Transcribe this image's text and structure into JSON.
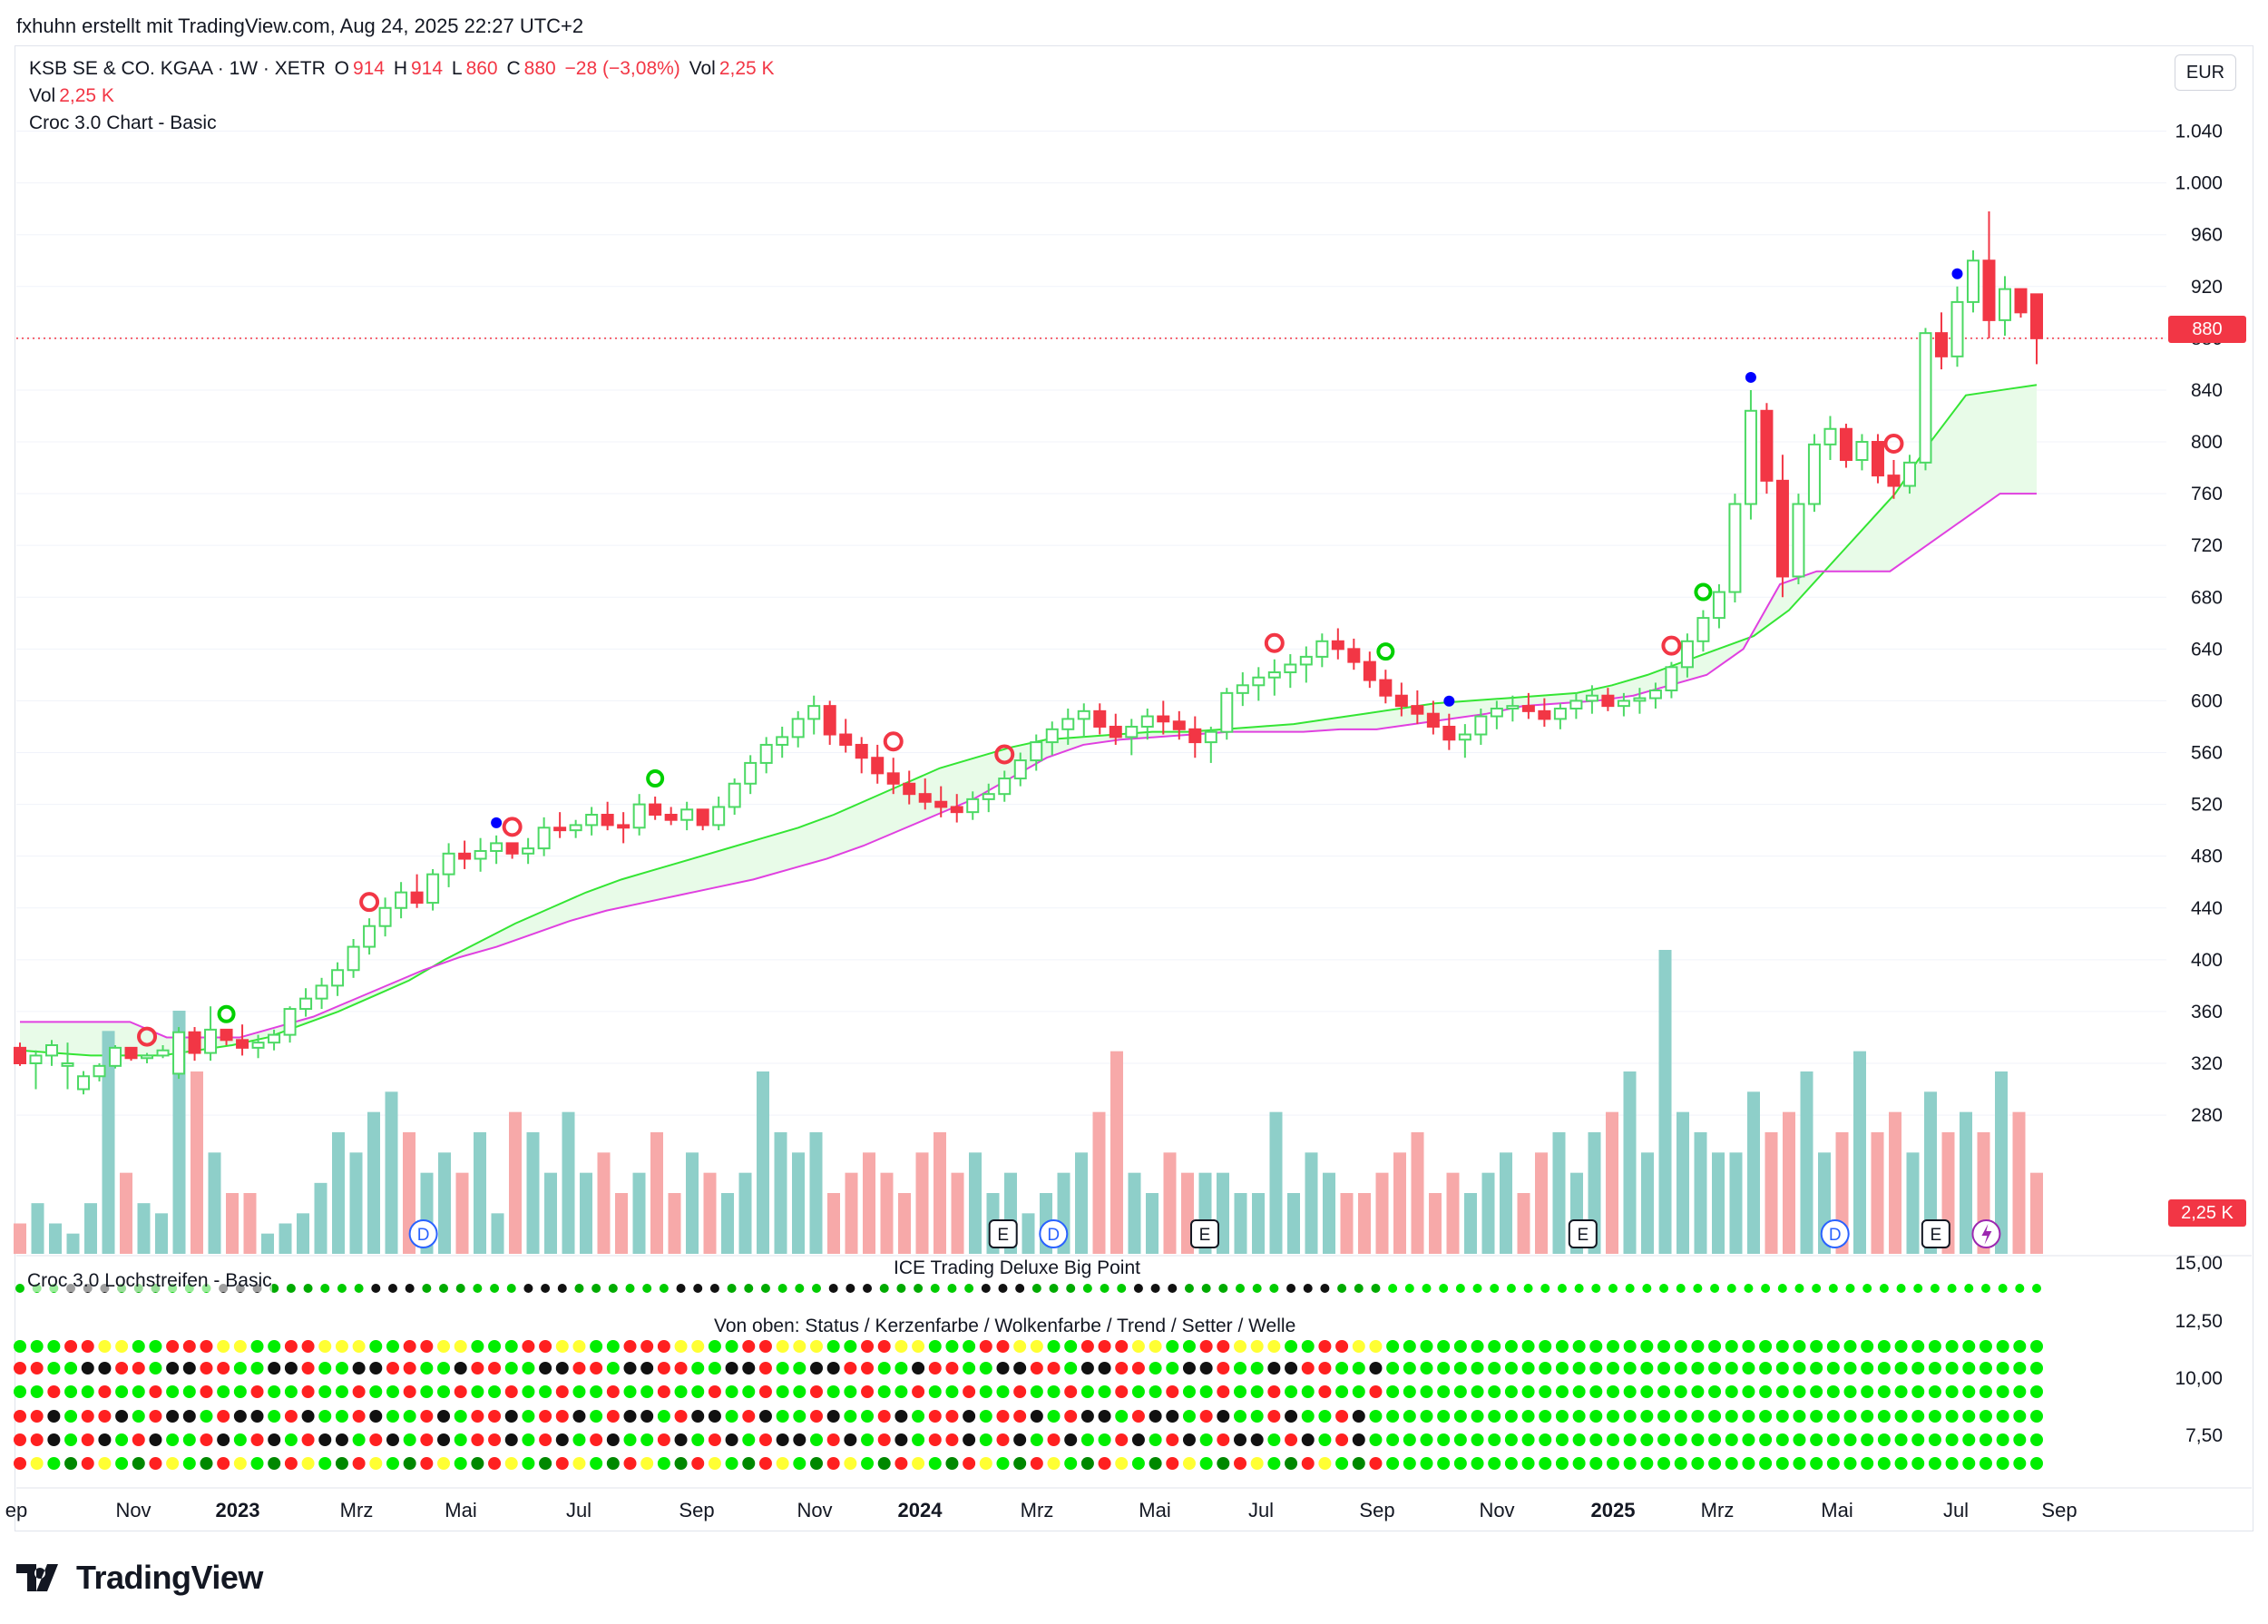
{
  "header_caption": "fxhuhn erstellt mit TradingView.com, Aug 24, 2025 22:27 UTC+2",
  "legend": {
    "symbol": "KSB SE & CO. KGAA · 1W · XETR",
    "o_label": "O",
    "o_value": "914",
    "h_label": "H",
    "h_value": "914",
    "l_label": "L",
    "l_value": "860",
    "c_label": "C",
    "c_value": "880",
    "change": "−28 (−3,08%)",
    "vol_label": "Vol",
    "vol_value": "2,25 K",
    "vol_line_label": "Vol",
    "vol_line_value": "2,25 K",
    "indicator": "Croc 3.0 Chart - Basic"
  },
  "currency": "EUR",
  "last_price_tag": "880",
  "last_volume_tag": "2,25 K",
  "colors": {
    "up": "#4cd964",
    "down": "#f23645",
    "cloud_top": "#34e534",
    "cloud_bottom": "#e040e0",
    "cloud_fill": "#e8fbe8",
    "vol_up": "#8ecfc9",
    "vol_down": "#f7a9a9"
  },
  "price_axis": [
    "1.040",
    "1.000",
    "960",
    "920",
    "880",
    "840",
    "800",
    "760",
    "720",
    "680",
    "640",
    "600",
    "560",
    "520",
    "480",
    "440",
    "400",
    "360",
    "320",
    "280"
  ],
  "osc_axis": [
    "15,00",
    "12,50",
    "10,00",
    "7,50"
  ],
  "x_axis": [
    {
      "label": "ep",
      "year": false
    },
    {
      "label": "Nov",
      "year": false
    },
    {
      "label": "2023",
      "year": true
    },
    {
      "label": "Mrz",
      "year": false
    },
    {
      "label": "Mai",
      "year": false
    },
    {
      "label": "Jul",
      "year": false
    },
    {
      "label": "Sep",
      "year": false
    },
    {
      "label": "Nov",
      "year": false
    },
    {
      "label": "2024",
      "year": true
    },
    {
      "label": "Mrz",
      "year": false
    },
    {
      "label": "Mai",
      "year": false
    },
    {
      "label": "Jul",
      "year": false
    },
    {
      "label": "Sep",
      "year": false
    },
    {
      "label": "Nov",
      "year": false
    },
    {
      "label": "2025",
      "year": true
    },
    {
      "label": "Mrz",
      "year": false
    },
    {
      "label": "Mai",
      "year": false
    },
    {
      "label": "Jul",
      "year": false
    },
    {
      "label": "Sep",
      "year": false
    }
  ],
  "panes": {
    "pane1_title": "Croc 3.0 Lochstreifen - Basic",
    "pane2_title": "ICE Trading Deluxe Big Point",
    "pane3_title": "Von oben: Status / Kerzenfarbe / Wolkenfarbe / Trend / Setter / Welle"
  },
  "event_markers": [
    {
      "type": "D",
      "week": 16
    },
    {
      "type": "E",
      "week": 39
    },
    {
      "type": "D",
      "week": 41
    },
    {
      "type": "E",
      "week": 47
    },
    {
      "type": "E",
      "week": 62
    },
    {
      "type": "D",
      "week": 72
    },
    {
      "type": "E",
      "week": 76
    },
    {
      "type": "lightning",
      "week": 78
    }
  ],
  "brand": "TradingView",
  "chart_data": {
    "type": "candlestick",
    "title": "KSB SE & CO. KGAA · 1W · XETR",
    "ylabel": "EUR",
    "ylim": [
      260,
      1060
    ],
    "x_range": [
      "2022-09",
      "2025-09"
    ],
    "candles_note": "weekly candles, approximate, estimated from chart",
    "candles": [
      [
        332,
        336,
        318,
        320
      ],
      [
        320,
        330,
        300,
        326
      ],
      [
        326,
        338,
        318,
        334
      ],
      [
        318,
        336,
        300,
        320
      ],
      [
        300,
        314,
        296,
        310
      ],
      [
        310,
        320,
        306,
        318
      ],
      [
        318,
        334,
        316,
        332
      ],
      [
        332,
        330,
        322,
        324
      ],
      [
        324,
        328,
        320,
        326
      ],
      [
        326,
        334,
        324,
        330
      ],
      [
        312,
        348,
        308,
        344
      ],
      [
        344,
        348,
        322,
        328
      ],
      [
        328,
        364,
        322,
        346
      ],
      [
        346,
        344,
        334,
        338
      ],
      [
        338,
        350,
        326,
        332
      ],
      [
        332,
        342,
        324,
        336
      ],
      [
        336,
        346,
        330,
        342
      ],
      [
        342,
        364,
        336,
        362
      ],
      [
        362,
        378,
        356,
        370
      ],
      [
        370,
        386,
        362,
        380
      ],
      [
        380,
        398,
        372,
        392
      ],
      [
        392,
        416,
        386,
        410
      ],
      [
        410,
        432,
        404,
        426
      ],
      [
        426,
        448,
        418,
        440
      ],
      [
        440,
        460,
        432,
        452
      ],
      [
        452,
        466,
        440,
        444
      ],
      [
        444,
        470,
        438,
        466
      ],
      [
        466,
        490,
        456,
        482
      ],
      [
        482,
        492,
        470,
        478
      ],
      [
        478,
        494,
        468,
        484
      ],
      [
        484,
        496,
        474,
        490
      ],
      [
        490,
        490,
        478,
        482
      ],
      [
        482,
        494,
        474,
        486
      ],
      [
        486,
        510,
        480,
        502
      ],
      [
        502,
        514,
        494,
        500
      ],
      [
        500,
        508,
        494,
        504
      ],
      [
        504,
        518,
        496,
        512
      ],
      [
        512,
        522,
        500,
        504
      ],
      [
        504,
        514,
        490,
        502
      ],
      [
        502,
        528,
        496,
        520
      ],
      [
        520,
        526,
        508,
        512
      ],
      [
        512,
        518,
        504,
        508
      ],
      [
        508,
        522,
        500,
        516
      ],
      [
        516,
        514,
        500,
        504
      ],
      [
        504,
        526,
        500,
        518
      ],
      [
        518,
        540,
        512,
        536
      ],
      [
        536,
        558,
        528,
        552
      ],
      [
        552,
        572,
        544,
        566
      ],
      [
        566,
        580,
        556,
        572
      ],
      [
        572,
        592,
        564,
        586
      ],
      [
        586,
        604,
        574,
        596
      ],
      [
        596,
        600,
        566,
        574
      ],
      [
        574,
        586,
        560,
        566
      ],
      [
        566,
        572,
        544,
        556
      ],
      [
        556,
        566,
        536,
        544
      ],
      [
        544,
        556,
        528,
        536
      ],
      [
        536,
        546,
        520,
        528
      ],
      [
        528,
        540,
        516,
        522
      ],
      [
        522,
        534,
        510,
        518
      ],
      [
        518,
        528,
        506,
        514
      ],
      [
        514,
        530,
        508,
        524
      ],
      [
        524,
        536,
        514,
        528
      ],
      [
        528,
        546,
        522,
        540
      ],
      [
        540,
        560,
        534,
        554
      ],
      [
        554,
        574,
        546,
        568
      ],
      [
        568,
        584,
        558,
        578
      ],
      [
        578,
        594,
        566,
        586
      ],
      [
        586,
        598,
        572,
        592
      ],
      [
        592,
        598,
        574,
        580
      ],
      [
        580,
        590,
        566,
        572
      ],
      [
        572,
        586,
        558,
        580
      ],
      [
        580,
        594,
        570,
        588
      ],
      [
        588,
        600,
        574,
        584
      ],
      [
        584,
        592,
        570,
        578
      ],
      [
        578,
        588,
        556,
        568
      ],
      [
        568,
        580,
        552,
        576
      ],
      [
        576,
        610,
        570,
        606
      ],
      [
        606,
        622,
        596,
        612
      ],
      [
        612,
        626,
        600,
        618
      ],
      [
        618,
        632,
        604,
        622
      ],
      [
        622,
        636,
        610,
        628
      ],
      [
        628,
        642,
        614,
        634
      ],
      [
        634,
        652,
        626,
        646
      ],
      [
        646,
        656,
        632,
        640
      ],
      [
        640,
        648,
        624,
        630
      ],
      [
        630,
        638,
        610,
        616
      ],
      [
        616,
        624,
        598,
        604
      ],
      [
        604,
        614,
        588,
        596
      ],
      [
        596,
        608,
        582,
        590
      ],
      [
        590,
        600,
        574,
        580
      ],
      [
        580,
        590,
        562,
        570
      ],
      [
        570,
        582,
        556,
        574
      ],
      [
        574,
        594,
        566,
        588
      ],
      [
        588,
        600,
        578,
        594
      ],
      [
        594,
        604,
        584,
        596
      ],
      [
        596,
        606,
        586,
        592
      ],
      [
        592,
        602,
        580,
        586
      ],
      [
        586,
        598,
        578,
        594
      ],
      [
        594,
        606,
        586,
        600
      ],
      [
        600,
        612,
        590,
        604
      ],
      [
        604,
        610,
        592,
        596
      ],
      [
        596,
        606,
        588,
        600
      ],
      [
        600,
        610,
        590,
        602
      ],
      [
        602,
        614,
        594,
        608
      ],
      [
        608,
        630,
        602,
        626
      ],
      [
        626,
        652,
        618,
        646
      ],
      [
        646,
        670,
        638,
        664
      ],
      [
        664,
        690,
        656,
        684
      ],
      [
        684,
        760,
        676,
        752
      ],
      [
        752,
        840,
        740,
        824
      ],
      [
        824,
        830,
        760,
        770
      ],
      [
        770,
        790,
        680,
        696
      ],
      [
        696,
        760,
        690,
        752
      ],
      [
        752,
        806,
        746,
        798
      ],
      [
        798,
        820,
        786,
        810
      ],
      [
        810,
        814,
        780,
        786
      ],
      [
        786,
        806,
        778,
        800
      ],
      [
        800,
        806,
        768,
        774
      ],
      [
        774,
        786,
        756,
        766
      ],
      [
        766,
        790,
        760,
        784
      ],
      [
        784,
        888,
        778,
        884
      ],
      [
        884,
        900,
        856,
        866
      ],
      [
        866,
        920,
        858,
        908
      ],
      [
        908,
        948,
        900,
        940
      ],
      [
        940,
        978,
        880,
        894
      ],
      [
        894,
        928,
        882,
        918
      ],
      [
        918,
        914,
        896,
        900
      ],
      [
        914,
        914,
        860,
        880
      ]
    ],
    "upper_cloud": [
      330,
      328,
      326,
      326,
      326,
      330,
      334,
      340,
      350,
      360,
      372,
      384,
      400,
      414,
      428,
      440,
      452,
      462,
      470,
      478,
      486,
      494,
      502,
      512,
      524,
      536,
      548,
      556,
      564,
      570,
      572,
      574,
      576,
      576,
      578,
      580,
      582,
      586,
      590,
      594,
      598,
      600,
      602,
      604,
      606,
      612,
      620,
      630,
      640,
      650,
      670,
      700,
      730,
      760,
      800,
      836,
      840,
      844
    ],
    "lower_cloud": [
      352,
      352,
      352,
      352,
      340,
      340,
      340,
      348,
      356,
      368,
      380,
      392,
      402,
      410,
      420,
      430,
      438,
      444,
      450,
      456,
      462,
      470,
      478,
      488,
      500,
      512,
      524,
      540,
      556,
      566,
      570,
      572,
      574,
      576,
      576,
      576,
      578,
      578,
      582,
      586,
      590,
      596,
      598,
      600,
      604,
      612,
      620,
      640,
      690,
      700,
      700,
      700,
      720,
      740,
      760,
      760
    ],
    "volume_note": "weekly volume bars, relative heights, approximate",
    "volume": [
      3,
      5,
      3,
      2,
      5,
      22,
      8,
      5,
      4,
      24,
      18,
      10,
      6,
      6,
      2,
      3,
      4,
      7,
      12,
      10,
      14,
      16,
      12,
      8,
      10,
      8,
      12,
      4,
      14,
      12,
      8,
      14,
      8,
      10,
      6,
      8,
      12,
      6,
      10,
      8,
      6,
      8,
      18,
      12,
      10,
      12,
      6,
      8,
      10,
      8,
      6,
      10,
      12,
      8,
      10,
      6,
      8,
      4,
      6,
      8,
      10,
      14,
      20,
      8,
      6,
      10,
      8,
      8,
      8,
      6,
      6,
      14,
      6,
      10,
      8,
      6,
      6,
      8,
      10,
      12,
      6,
      8,
      6,
      8,
      10,
      6,
      10,
      12,
      8,
      12,
      14,
      18,
      10,
      30,
      14,
      12,
      10,
      10,
      16,
      12,
      14,
      18,
      10,
      12,
      20,
      12,
      14,
      10,
      16,
      12,
      14,
      12,
      18,
      14,
      8
    ]
  }
}
